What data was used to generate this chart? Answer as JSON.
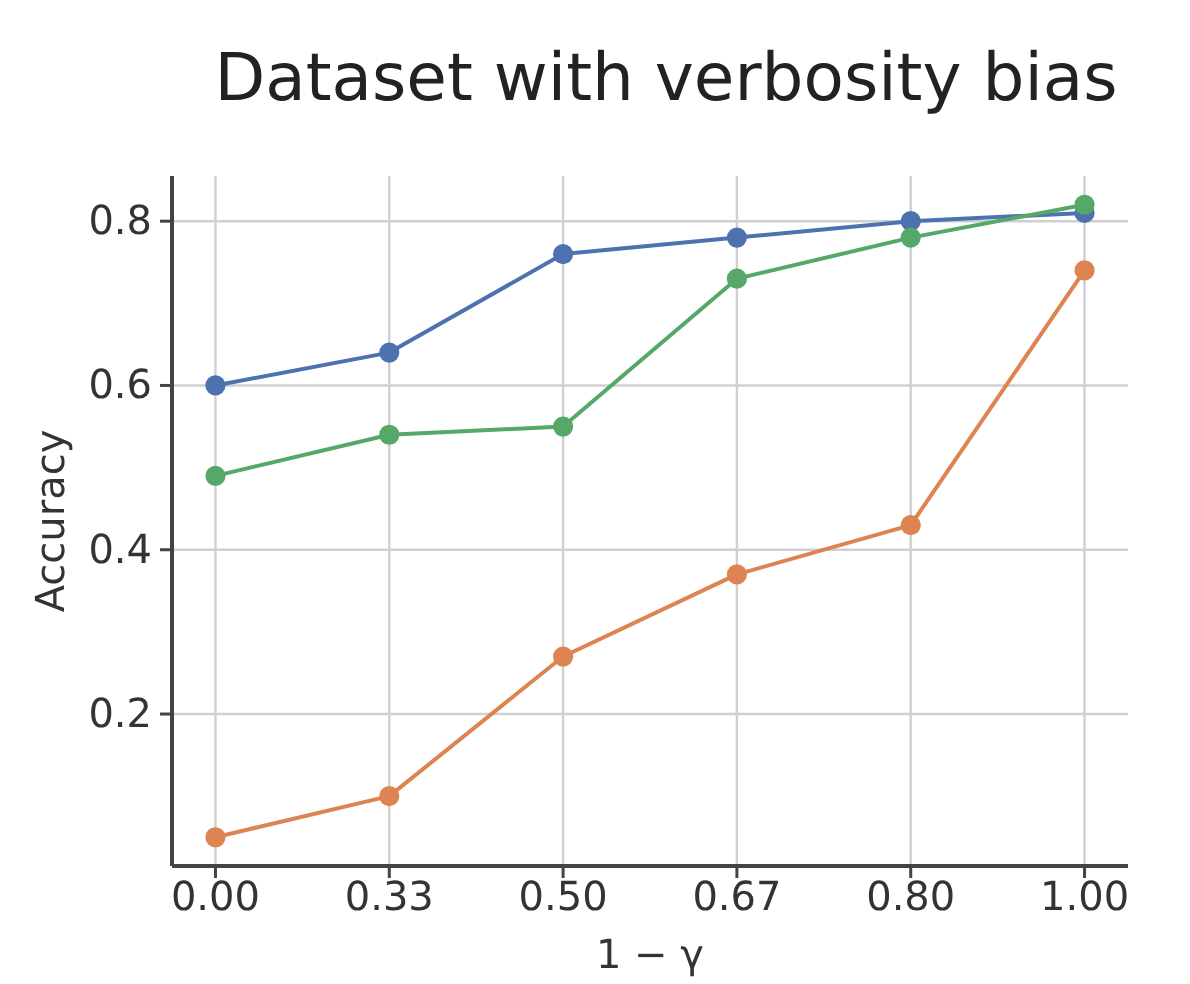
{
  "chart_data": {
    "type": "line",
    "title": "Dataset with verbosity bias",
    "xlabel": "1 − γ",
    "ylabel": "Accuracy",
    "categories": [
      "0.00",
      "0.33",
      "0.50",
      "0.67",
      "0.80",
      "1.00"
    ],
    "series": [
      {
        "color": "#4c72b0",
        "values": [
          0.6,
          0.64,
          0.76,
          0.78,
          0.8,
          0.81
        ]
      },
      {
        "color": "#dd8452",
        "values": [
          0.05,
          0.1,
          0.27,
          0.37,
          0.43,
          0.74
        ]
      },
      {
        "color": "#55a868",
        "values": [
          0.49,
          0.54,
          0.55,
          0.73,
          0.78,
          0.82
        ]
      }
    ],
    "ylim": [
      0.015,
      0.855
    ],
    "yticks": [
      {
        "value": 0.2,
        "label": "0.2"
      },
      {
        "value": 0.4,
        "label": "0.4"
      },
      {
        "value": 0.6,
        "label": "0.6"
      },
      {
        "value": 0.8,
        "label": "0.8"
      }
    ],
    "grid": true,
    "marker": "circle",
    "line_style": "solid"
  }
}
